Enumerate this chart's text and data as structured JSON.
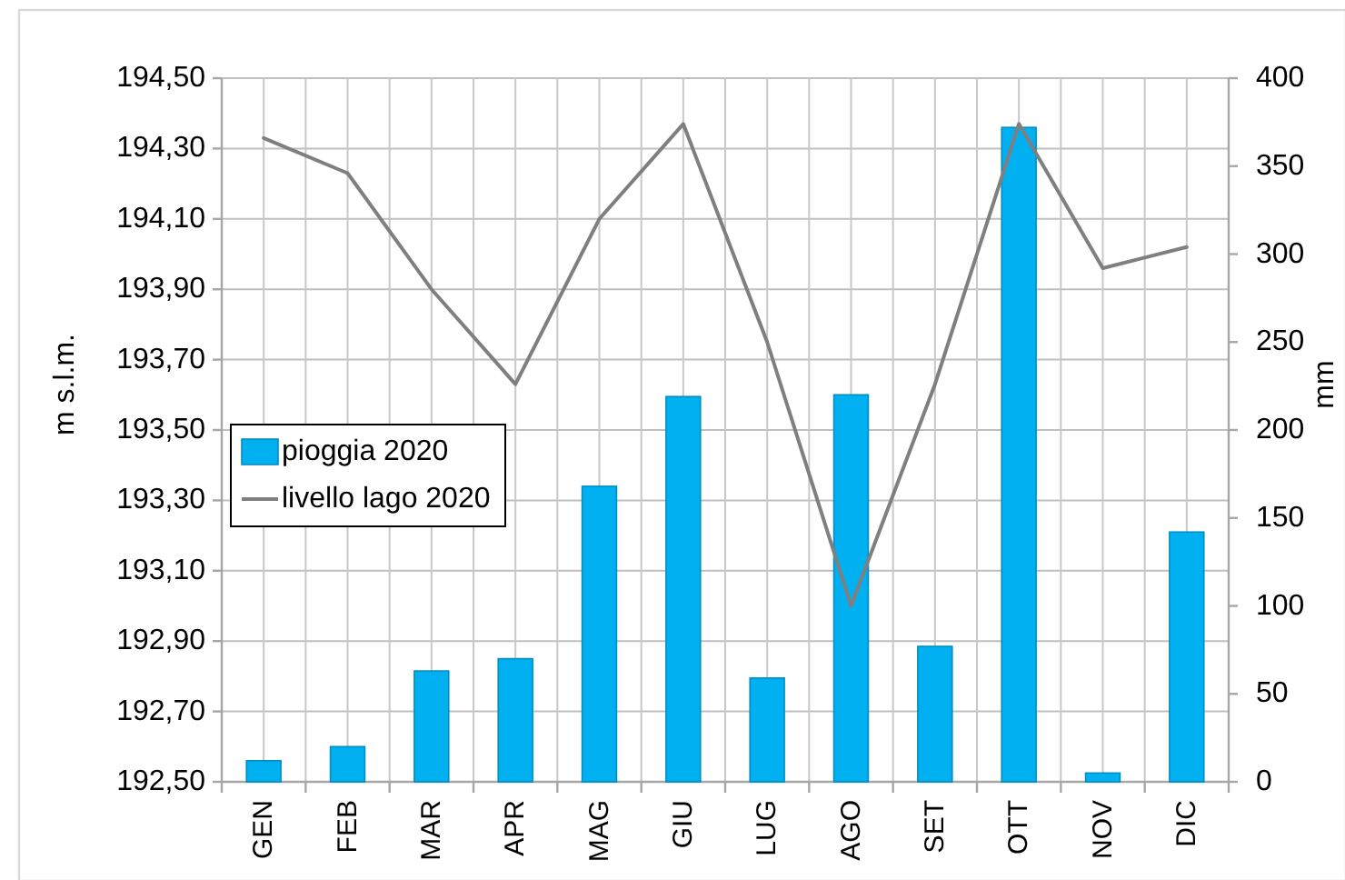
{
  "chart_data": {
    "type": "bar",
    "categories": [
      "GEN",
      "FEB",
      "MAR",
      "APR",
      "MAG",
      "GIU",
      "LUG",
      "AGO",
      "SET",
      "OTT",
      "NOV",
      "DIC"
    ],
    "ylabel": "m s.l.m.",
    "y2label": "mm",
    "ylim": [
      192.5,
      194.5
    ],
    "yticks": [
      {
        "value": 192.5,
        "label": "192,50"
      },
      {
        "value": 192.7,
        "label": "192,70"
      },
      {
        "value": 192.9,
        "label": "192,90"
      },
      {
        "value": 193.1,
        "label": "193,10"
      },
      {
        "value": 193.3,
        "label": "193,30"
      },
      {
        "value": 193.5,
        "label": "193,50"
      },
      {
        "value": 193.7,
        "label": "193,70"
      },
      {
        "value": 193.9,
        "label": "193,90"
      },
      {
        "value": 194.1,
        "label": "194,10"
      },
      {
        "value": 194.3,
        "label": "194,30"
      },
      {
        "value": 194.5,
        "label": "194,50"
      }
    ],
    "y2lim": [
      0,
      400
    ],
    "y2ticks": [
      0,
      50,
      100,
      150,
      200,
      250,
      300,
      350,
      400
    ],
    "grid": true,
    "legend": "left",
    "series": [
      {
        "name": "pioggia 2020",
        "axis": "y2",
        "color": "#00b0f0",
        "values": [
          12,
          20,
          63,
          70,
          168,
          219,
          59,
          220,
          77,
          372,
          5,
          142
        ]
      },
      {
        "name": "livello lago 2020",
        "type": "line",
        "color": "#7f7f7f",
        "values": [
          194.33,
          194.23,
          193.9,
          193.63,
          194.1,
          194.37,
          193.75,
          193.0,
          193.63,
          194.37,
          193.96,
          194.02
        ]
      }
    ]
  }
}
